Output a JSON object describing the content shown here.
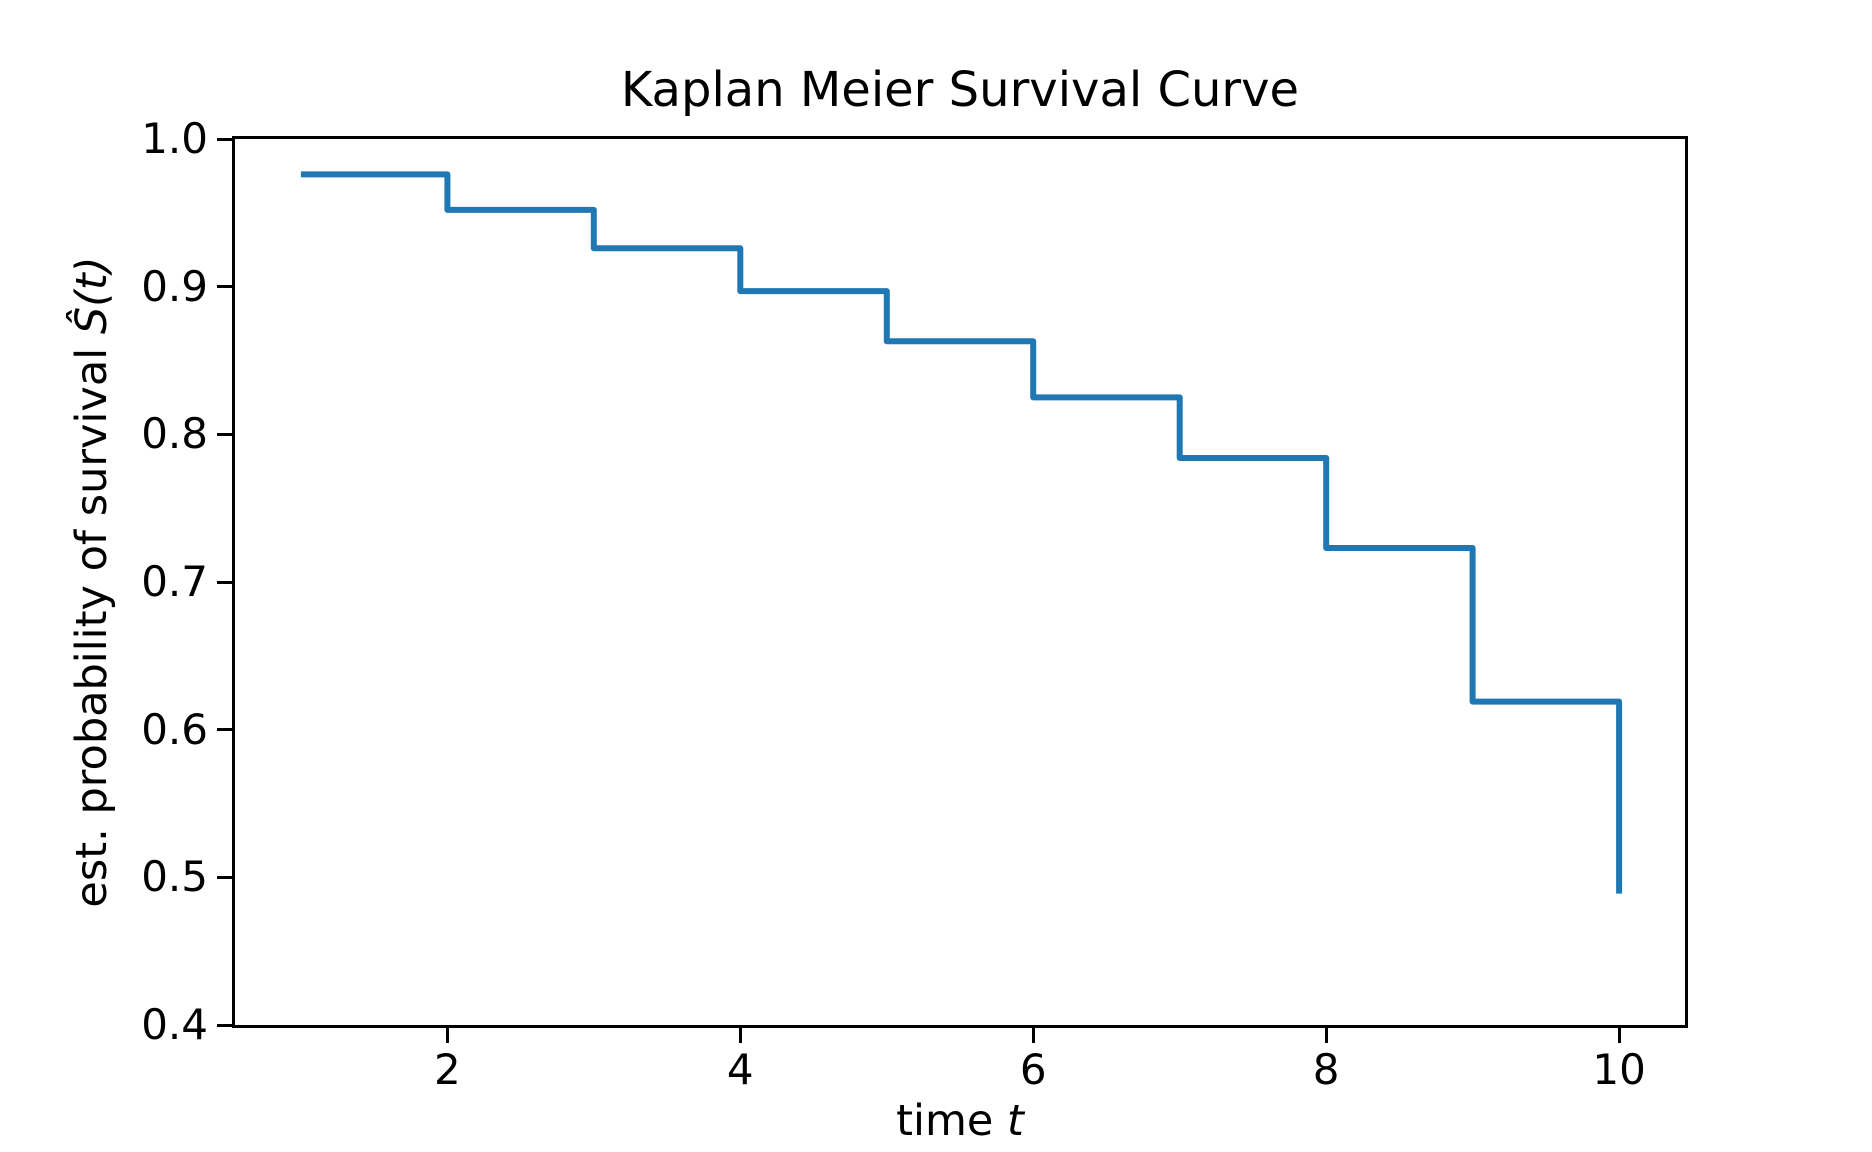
{
  "figure": {
    "background": "#ffffff"
  },
  "chart_data": {
    "type": "line",
    "step_style": "post",
    "title": "Kaplan Meier Survival Curve",
    "xlabel_text": "time ",
    "xlabel_math": "t",
    "ylabel_text": "est. probability of survival ",
    "ylabel_math": "Ŝ(t)",
    "x": [
      1,
      2,
      3,
      4,
      5,
      6,
      7,
      8,
      9,
      10
    ],
    "y": [
      0.976,
      0.952,
      0.926,
      0.897,
      0.863,
      0.825,
      0.784,
      0.723,
      0.619,
      0.489
    ],
    "xlim": [
      0.55,
      10.45
    ],
    "ylim": [
      0.4,
      1.0
    ],
    "x_ticks": [
      {
        "label": "2",
        "value": 2
      },
      {
        "label": "4",
        "value": 4
      },
      {
        "label": "6",
        "value": 6
      },
      {
        "label": "8",
        "value": 8
      },
      {
        "label": "10",
        "value": 10
      }
    ],
    "y_ticks": [
      {
        "label": "1.0",
        "value": 1.0
      },
      {
        "label": "0.9",
        "value": 0.9
      },
      {
        "label": "0.8",
        "value": 0.8
      },
      {
        "label": "0.7",
        "value": 0.7
      },
      {
        "label": "0.6",
        "value": 0.6
      },
      {
        "label": "0.5",
        "value": 0.5
      },
      {
        "label": "0.4",
        "value": 0.4
      }
    ],
    "line_color": "#1f77b4",
    "line_width": 6,
    "axis_color": "#000000",
    "grid": false,
    "legend": null
  }
}
